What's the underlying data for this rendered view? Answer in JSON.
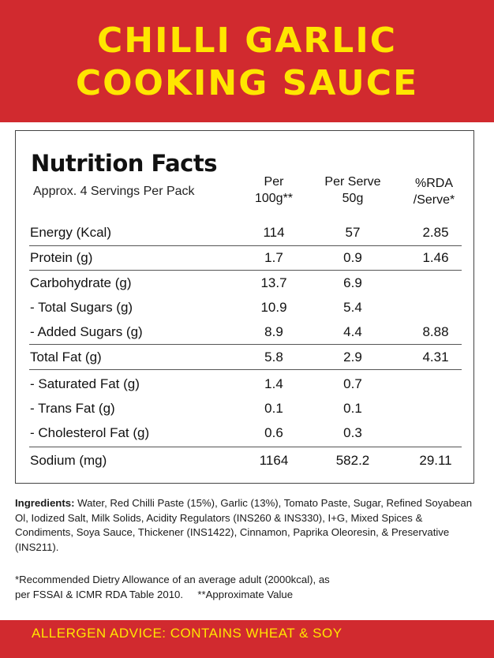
{
  "header": {
    "line1": "Chilli Garlic",
    "line2": "Cooking Sauce",
    "bg_color": "#d12a2f",
    "text_color": "#ffe600"
  },
  "nutrition": {
    "title": "Nutrition Facts",
    "servings": "Approx. 4 Servings Per Pack",
    "col1_line1": "Per",
    "col1_line2": "100g**",
    "col2_line1": "Per Serve",
    "col2_line2": "50g",
    "col3_line1": "%RDA",
    "col3_line2": "/Serve*",
    "rows": [
      {
        "label": "Energy (Kcal)",
        "per100": "114",
        "perServe": "57",
        "rda": "2.85"
      },
      {
        "label": "Protein (g)",
        "per100": "1.7",
        "perServe": "0.9",
        "rda": "1.46"
      },
      {
        "label": "Carbohydrate (g)",
        "per100": "13.7",
        "perServe": "6.9",
        "rda": ""
      },
      {
        "label": "- Total Sugars (g)",
        "per100": "10.9",
        "perServe": "5.4",
        "rda": ""
      },
      {
        "label": "- Added Sugars (g)",
        "per100": "8.9",
        "perServe": "4.4",
        "rda": "8.88"
      },
      {
        "label": "Total Fat (g)",
        "per100": "5.8",
        "perServe": "2.9",
        "rda": "4.31"
      },
      {
        "label": "- Saturated Fat (g)",
        "per100": "1.4",
        "perServe": "0.7",
        "rda": ""
      },
      {
        "label": "- Trans Fat (g)",
        "per100": "0.1",
        "perServe": "0.1",
        "rda": ""
      },
      {
        "label": "- Cholesterol Fat (g)",
        "per100": "0.6",
        "perServe": "0.3",
        "rda": ""
      },
      {
        "label": "Sodium (mg)",
        "per100": "1164",
        "perServe": "582.2",
        "rda": "29.11"
      }
    ]
  },
  "ingredients": {
    "label": "Ingredients:",
    "text": " Water, Red Chilli Paste (15%), Garlic (13%), Tomato Paste, Sugar, Refined Soyabean Ol, Iodized Salt, Milk Solids, Acidity Regulators (INS260 & INS330), I+G, Mixed Spices & Condiments, Soya Sauce, Thickener (INS1422), Cinnamon, Paprika Oleoresin, & Preservative (INS211)."
  },
  "notes": {
    "line1": "*Recommended Dietry Allowance of an average adult (2000kcal), as",
    "line2": "per FSSAI & ICMR RDA Table 2010.     **Approximate Value"
  },
  "footer": {
    "allergen": "ALLERGEN ADVICE: CONTAINS WHEAT & SOY"
  }
}
